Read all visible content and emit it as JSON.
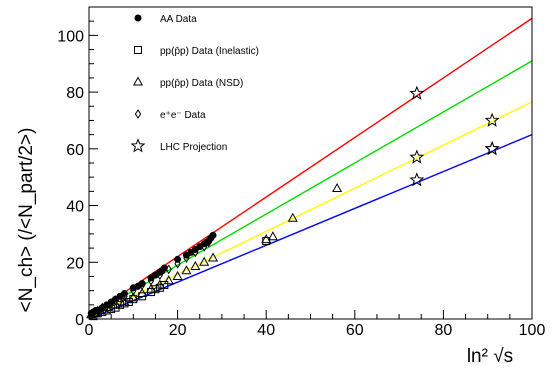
{
  "chart_data": {
    "type": "scatter",
    "xlabel": "ln² √s",
    "ylabel": "<N_ch> (/<N_part/2>)",
    "xlim": [
      0,
      100
    ],
    "ylim": [
      0,
      110
    ],
    "x_ticks": [
      "0",
      "20",
      "40",
      "60",
      "80",
      "100"
    ],
    "y_ticks": [
      "0",
      "20",
      "40",
      "60",
      "80",
      "100"
    ],
    "grid": false,
    "legend_position": "top-left",
    "legend": [
      {
        "label": "AA Data",
        "marker": "filled-circle"
      },
      {
        "label": "pp(p̄p) Data (Inelastic)",
        "marker": "open-square"
      },
      {
        "label": "pp(p̄p) Data (NSD)",
        "marker": "open-triangle"
      },
      {
        "label": "e⁺e⁻ Data",
        "marker": "open-diamond"
      },
      {
        "label": "LHC Projection",
        "marker": "open-star"
      }
    ],
    "lines": [
      {
        "color": "#ff0000",
        "x": [
          0,
          100
        ],
        "y": [
          1,
          106
        ]
      },
      {
        "color": "#00dd00",
        "x": [
          0,
          100
        ],
        "y": [
          1,
          91
        ]
      },
      {
        "color": "#ffff00",
        "x": [
          0,
          100
        ],
        "y": [
          0.5,
          76.5
        ]
      },
      {
        "color": "#0000ff",
        "x": [
          0,
          100
        ],
        "y": [
          0,
          65
        ]
      }
    ],
    "series": [
      {
        "marker": "filled-circle",
        "x": [
          0.5,
          1,
          1.5,
          2,
          3,
          4,
          5,
          6,
          7,
          8,
          10,
          11,
          12,
          14,
          15,
          16,
          16.5,
          17,
          20,
          22,
          23,
          24,
          25,
          26,
          26.5,
          27,
          27.5,
          28
        ],
        "y": [
          2,
          2.5,
          3,
          3,
          4,
          5,
          6,
          7,
          8,
          9,
          11,
          11.5,
          12.5,
          14.5,
          15.5,
          16.5,
          17,
          18,
          21,
          22.5,
          23.5,
          24.5,
          25.5,
          26.5,
          27,
          27.5,
          28.5,
          29.5
        ]
      },
      {
        "marker": "open-square",
        "x": [
          1,
          2,
          3,
          4,
          5,
          6,
          7,
          8,
          9,
          10,
          12,
          14,
          15,
          16,
          17,
          40
        ],
        "y": [
          1,
          2,
          2.5,
          3,
          3.5,
          4,
          5,
          5.5,
          6,
          7,
          8,
          9.5,
          10.5,
          11,
          12,
          27.5
        ]
      },
      {
        "marker": "open-triangle",
        "x": [
          0.5,
          1.5,
          2.5,
          4,
          6,
          8,
          10,
          12,
          14,
          16,
          18,
          20,
          22,
          24,
          26,
          28,
          40,
          41.5,
          46,
          56
        ],
        "y": [
          1.5,
          2,
          3,
          4,
          5,
          6,
          7.5,
          9,
          10.5,
          12,
          13.5,
          15,
          17,
          18.5,
          20,
          21.5,
          28,
          29,
          35.5,
          46
        ]
      },
      {
        "marker": "open-diamond",
        "x": [
          1,
          2,
          3,
          4,
          5,
          6,
          8,
          10,
          12,
          14,
          16,
          18,
          20,
          22,
          24,
          26,
          27
        ],
        "y": [
          2,
          3,
          4,
          4.5,
          5.5,
          6.5,
          8,
          10,
          12,
          13.5,
          15.5,
          17.5,
          19.5,
          21.5,
          23.5,
          25.5,
          27
        ]
      },
      {
        "marker": "open-star",
        "x": [
          74,
          74,
          74,
          91,
          91,
          91
        ],
        "y": [
          79.5,
          57,
          49,
          70,
          60,
          60
        ]
      }
    ]
  }
}
